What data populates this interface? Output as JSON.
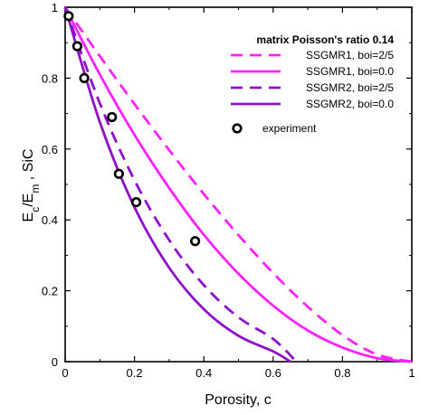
{
  "chart_data": {
    "type": "line",
    "title": "",
    "xlabel": "Porosity, c",
    "ylabel": "E_c/E_m , SiC",
    "xlim": [
      0,
      1
    ],
    "ylim": [
      0,
      1
    ],
    "xticks": [
      0,
      0.2,
      0.4,
      0.6,
      0.8,
      1
    ],
    "yticks": [
      0,
      0.2,
      0.4,
      0.6,
      0.8,
      1
    ],
    "xtick_labels": [
      "0",
      "0.2",
      "0.4",
      "0.6",
      "0.8",
      "1"
    ],
    "ytick_labels": [
      "0",
      "0.2",
      "0.4",
      "0.6",
      "0.8",
      "1"
    ],
    "grid": false,
    "legend": {
      "title": "matrix Poisson's ratio 0.14",
      "placement": "top-right"
    },
    "series": [
      {
        "name": "SSGMR1, boi=2/5",
        "color": "#ff22ff",
        "style": "dashed",
        "x": [
          0,
          0.1,
          0.2,
          0.3,
          0.4,
          0.5,
          0.6,
          0.7,
          0.8,
          0.9,
          1.0
        ],
        "y": [
          1.0,
          0.862,
          0.727,
          0.597,
          0.473,
          0.357,
          0.25,
          0.155,
          0.075,
          0.02,
          0.0
        ]
      },
      {
        "name": "SSGMR1, boi=0.0",
        "color": "#ff22ff",
        "style": "solid",
        "x": [
          0,
          0.1,
          0.2,
          0.3,
          0.4,
          0.5,
          0.6,
          0.7,
          0.8,
          0.9,
          1.0
        ],
        "y": [
          1.0,
          0.81,
          0.64,
          0.49,
          0.358,
          0.248,
          0.158,
          0.088,
          0.04,
          0.01,
          0.0
        ]
      },
      {
        "name": "SSGMR2, boi=2/5",
        "color": "#8e10c8",
        "style": "dashed",
        "x": [
          0,
          0.1,
          0.2,
          0.3,
          0.4,
          0.5,
          0.6,
          0.667
        ],
        "y": [
          1.0,
          0.729,
          0.512,
          0.343,
          0.216,
          0.125,
          0.064,
          0.0
        ]
      },
      {
        "name": "SSGMR2, boi=0.0",
        "color": "#8e10c8",
        "style": "solid",
        "x": [
          0,
          0.1,
          0.2,
          0.3,
          0.4,
          0.5,
          0.6,
          0.65
        ],
        "y": [
          1.0,
          0.676,
          0.436,
          0.265,
          0.148,
          0.073,
          0.029,
          0.0
        ]
      }
    ],
    "scatter": {
      "name": "experiment",
      "x": [
        0.01,
        0.035,
        0.055,
        0.135,
        0.155,
        0.205,
        0.375
      ],
      "y": [
        0.975,
        0.89,
        0.8,
        0.69,
        0.53,
        0.45,
        0.34
      ]
    }
  }
}
